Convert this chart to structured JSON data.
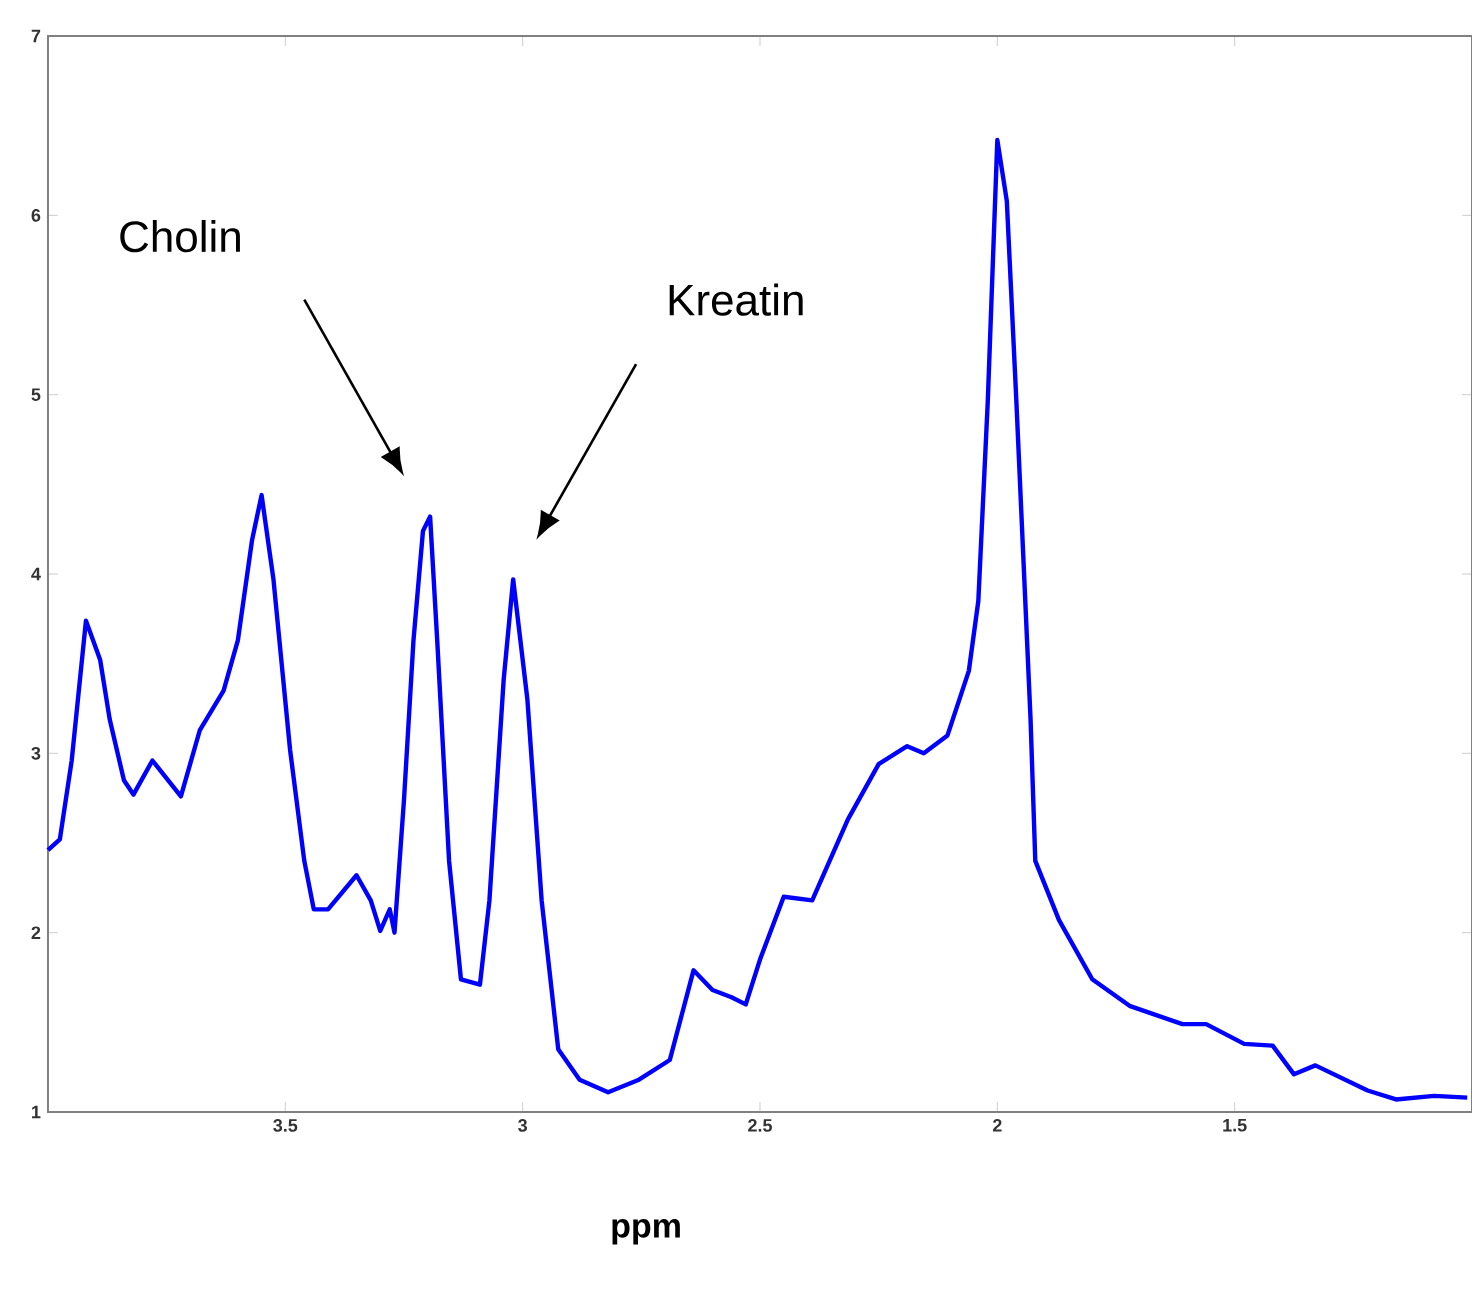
{
  "chart_data": {
    "type": "line",
    "xlabel": "ppm",
    "xlim": [
      4,
      1
    ],
    "ylim": [
      1,
      7
    ],
    "xticks": [
      3.5,
      3,
      2.5,
      2,
      1.5
    ],
    "yticks": [
      1,
      2,
      3,
      4,
      5,
      6,
      7
    ],
    "grid": false,
    "marker": "none",
    "line_style": "solid",
    "annotations": [
      "Cholin",
      "Kreatin"
    ],
    "series": [
      {
        "color": "#0000ff",
        "x": [
          4.0,
          3.975,
          3.95,
          3.92,
          3.89,
          3.87,
          3.84,
          3.82,
          3.78,
          3.72,
          3.68,
          3.63,
          3.6,
          3.57,
          3.55,
          3.525,
          3.49,
          3.46,
          3.44,
          3.41,
          3.35,
          3.32,
          3.3,
          3.28,
          3.27,
          3.25,
          3.23,
          3.21,
          3.195,
          3.18,
          3.155,
          3.13,
          3.09,
          3.07,
          3.04,
          3.02,
          2.99,
          2.96,
          2.925,
          2.88,
          2.82,
          2.755,
          2.69,
          2.64,
          2.6,
          2.56,
          2.53,
          2.5,
          2.45,
          2.39,
          2.315,
          2.25,
          2.19,
          2.155,
          2.105,
          2.06,
          2.04,
          2.02,
          2.0,
          1.98,
          1.96,
          1.93,
          1.92,
          1.87,
          1.8,
          1.72,
          1.61,
          1.56,
          1.48,
          1.42,
          1.375,
          1.33,
          1.22,
          1.16,
          1.08,
          1.01
        ],
        "values": [
          2.46,
          2.52,
          2.96,
          3.74,
          3.52,
          3.19,
          2.85,
          2.77,
          2.96,
          2.76,
          3.13,
          3.35,
          3.63,
          4.19,
          4.44,
          3.97,
          3.02,
          2.4,
          2.13,
          2.13,
          2.32,
          2.18,
          2.01,
          2.13,
          2.0,
          2.74,
          3.63,
          4.24,
          4.32,
          3.63,
          2.4,
          1.74,
          1.71,
          2.18,
          3.41,
          3.97,
          3.3,
          2.18,
          1.35,
          1.18,
          1.11,
          1.18,
          1.29,
          1.79,
          1.68,
          1.64,
          1.6,
          1.85,
          2.2,
          2.18,
          2.63,
          2.94,
          3.04,
          3.0,
          3.1,
          3.46,
          3.85,
          4.97,
          6.42,
          6.08,
          4.97,
          3.19,
          2.4,
          2.07,
          1.74,
          1.59,
          1.49,
          1.49,
          1.38,
          1.37,
          1.21,
          1.26,
          1.12,
          1.07,
          1.09,
          1.08
        ]
      }
    ]
  }
}
